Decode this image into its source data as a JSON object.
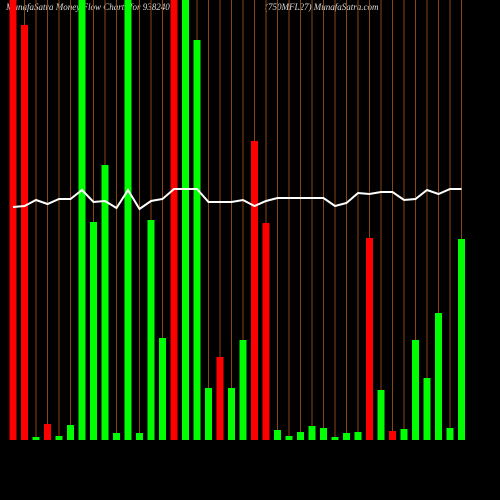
{
  "chart_data": {
    "type": "bar",
    "title": "MunafaSatra  Money Flow  Charts for 938240",
    "subtitle": "(750MFL27) MunafaSatra.com",
    "categories": [
      null,
      null,
      null,
      null,
      null,
      null,
      null,
      null,
      null,
      null,
      null,
      null,
      null,
      null,
      null,
      null,
      null,
      null,
      null,
      null,
      null,
      null,
      null,
      null,
      null,
      null,
      null,
      null,
      null,
      null,
      null,
      null,
      null,
      null,
      null,
      null,
      null,
      null,
      null,
      null
    ],
    "values": [
      440,
      415,
      3,
      16,
      4,
      15,
      440,
      218,
      275,
      7,
      440,
      7,
      220,
      102,
      440,
      440,
      400,
      52,
      83,
      52,
      100,
      299,
      217,
      10,
      4,
      8,
      14,
      12,
      3,
      7,
      8,
      202,
      50,
      9,
      11,
      100,
      62,
      127,
      12,
      201
    ],
    "colors": [
      "#ff0000",
      "#ff0000",
      "#00ff00",
      "#ff0000",
      "#00ff00",
      "#00ff00",
      "#00ff00",
      "#00ff00",
      "#00ff00",
      "#00ff00",
      "#00ff00",
      "#00ff00",
      "#00ff00",
      "#00ff00",
      "#ff0000",
      "#00ff00",
      "#00ff00",
      "#00ff00",
      "#ff0000",
      "#00ff00",
      "#00ff00",
      "#ff0000",
      "#ff0000",
      "#00ff00",
      "#00ff00",
      "#00ff00",
      "#00ff00",
      "#00ff00",
      "#00ff00",
      "#00ff00",
      "#00ff00",
      "#ff0000",
      "#00ff00",
      "#ff0000",
      "#00ff00",
      "#00ff00",
      "#00ff00",
      "#00ff00",
      "#00ff00",
      "#00ff00"
    ],
    "line": {
      "color": "#ffffff",
      "values": [
        233,
        234,
        240,
        236,
        241,
        241,
        250,
        238,
        239,
        232,
        250,
        231,
        239,
        241,
        251,
        251,
        251,
        238,
        238,
        238,
        240,
        234,
        239,
        242,
        242,
        242,
        242,
        242,
        234,
        237,
        247,
        246,
        248,
        248,
        240,
        241,
        250,
        246,
        251,
        251
      ]
    },
    "ylim": [
      0,
      440
    ],
    "grid": true,
    "grid_color": "#8b4513"
  }
}
